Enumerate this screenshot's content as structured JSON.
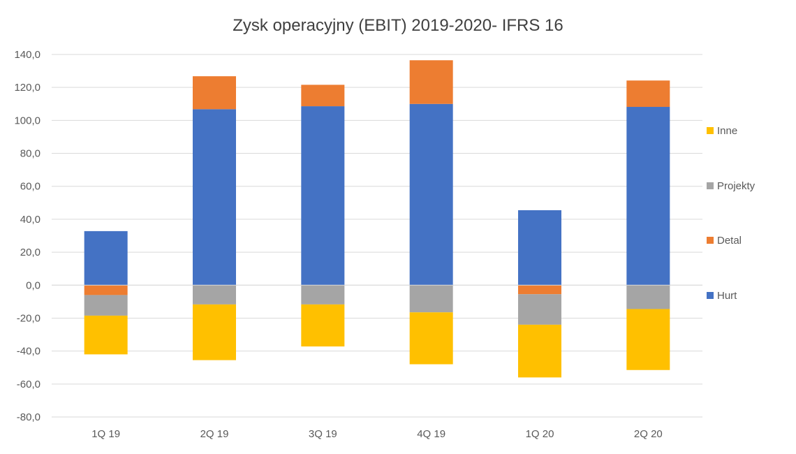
{
  "chart_data": {
    "type": "bar",
    "stacked": true,
    "title": "Zysk operacyjny (EBIT) 2019-2020- IFRS 16",
    "xlabel": "",
    "ylabel": "",
    "categories": [
      "1Q 19",
      "2Q 19",
      "3Q 19",
      "4Q 19",
      "1Q 20",
      "2Q 20"
    ],
    "series": [
      {
        "name": "Hurt",
        "color": "#4472C4",
        "values": [
          32.8,
          106.8,
          108.6,
          110.0,
          45.5,
          108.2
        ]
      },
      {
        "name": "Detal",
        "color": "#ED7D31",
        "values": [
          -6.0,
          20.0,
          13.0,
          26.5,
          -5.5,
          16.0
        ]
      },
      {
        "name": "Projekty",
        "color": "#A5A5A5",
        "values": [
          -12.5,
          -11.7,
          -11.7,
          -16.5,
          -18.5,
          -14.5
        ]
      },
      {
        "name": "Inne",
        "color": "#FFC000",
        "values": [
          -23.5,
          -33.8,
          -25.5,
          -31.5,
          -32.0,
          -37.0
        ]
      }
    ],
    "legend_order": [
      "Inne",
      "Projekty",
      "Detal",
      "Hurt"
    ],
    "legend_position": "right",
    "ylim": [
      -80,
      140
    ],
    "yticks": [
      -80,
      -60,
      -40,
      -20,
      0,
      20,
      40,
      60,
      80,
      100,
      120,
      140
    ],
    "ytick_labels": [
      "-80,0",
      "-60,0",
      "-40,0",
      "-20,0",
      "0,0",
      "20,0",
      "40,0",
      "60,0",
      "80,0",
      "100,0",
      "120,0",
      "140,0"
    ],
    "grid": true
  }
}
